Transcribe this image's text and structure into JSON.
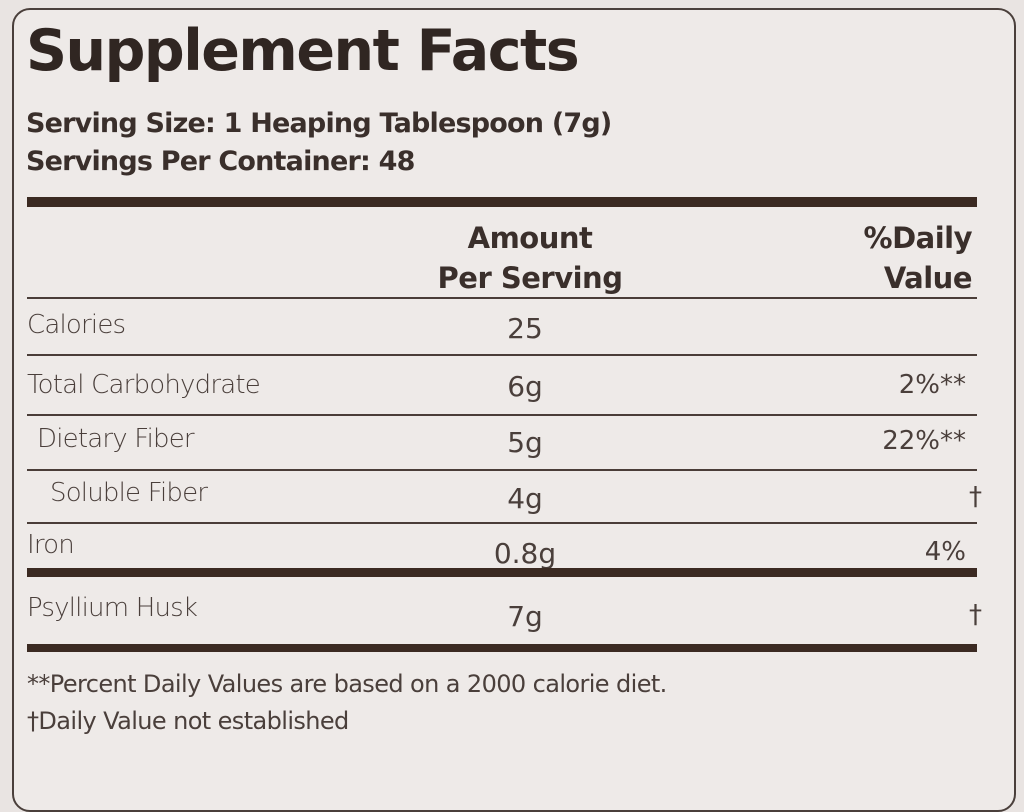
{
  "title": "Supplement Facts",
  "serving_size": "Serving Size: 1 Heaping Tablespoon (7g)",
  "servings_per_container": "Servings Per Container: 48",
  "headers": {
    "amount_line1": "Amount",
    "amount_line2": "Per Serving",
    "dv_line1": "%Daily",
    "dv_line2": "Value"
  },
  "rows": [
    {
      "name": "Calories",
      "amount": "25",
      "dv": ""
    },
    {
      "name": "Total Carbohydrate",
      "amount": "6g",
      "dv": "2%**"
    },
    {
      "name": "Dietary Fiber",
      "amount": "5g",
      "dv": "22%**"
    },
    {
      "name": "Soluble Fiber",
      "amount": "4g",
      "dv": "†"
    },
    {
      "name": "Iron",
      "amount": "0.8g",
      "dv": "4%"
    },
    {
      "name": "Psyllium Husk",
      "amount": "7g",
      "dv": "†"
    }
  ],
  "footnotes": [
    "**Percent Daily Values are based on a 2000 calorie diet.",
    "†Daily Value not established"
  ]
}
